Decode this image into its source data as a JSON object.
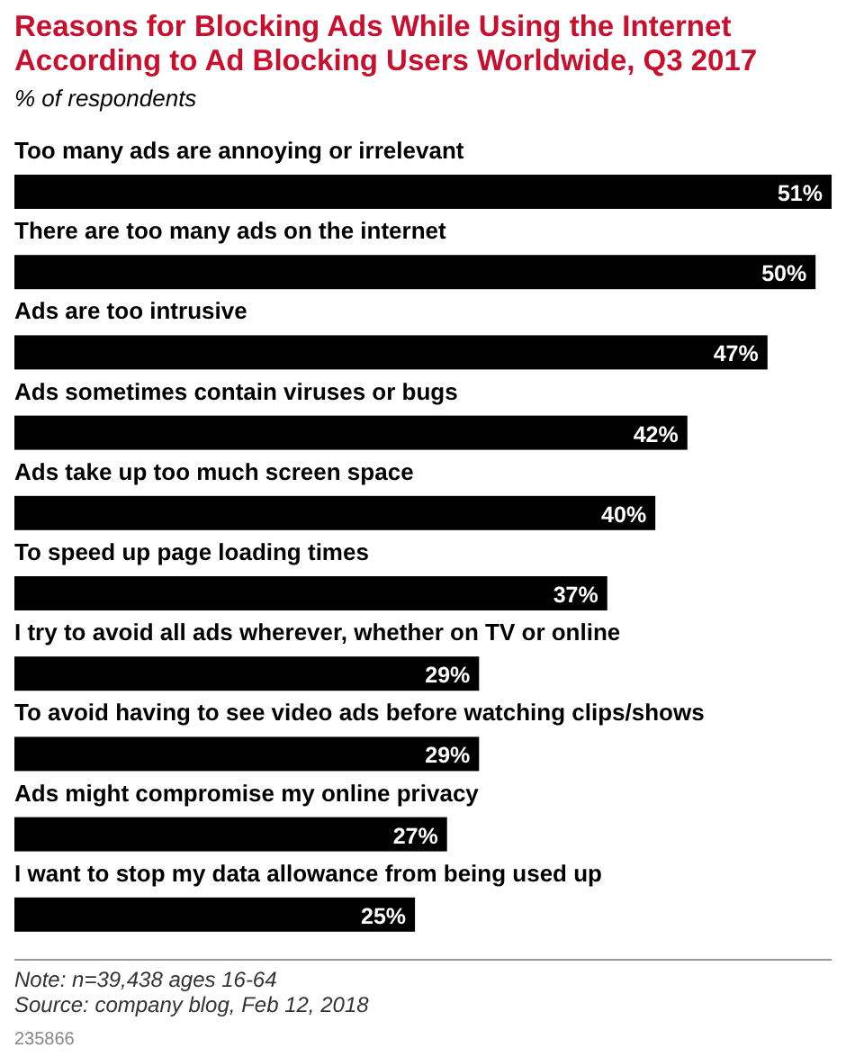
{
  "chart_data": {
    "type": "bar",
    "orientation": "horizontal",
    "title": "Reasons for Blocking Ads While Using the Internet According to Ad Blocking Users Worldwide, Q3 2017",
    "subtitle": "% of respondents",
    "categories": [
      "Too many ads are annoying or irrelevant",
      "There are too many ads on the internet",
      "Ads are too intrusive",
      "Ads sometimes contain viruses or bugs",
      "Ads take up too much screen space",
      "To speed up page loading times",
      "I try to avoid all ads wherever, whether on TV or online",
      "To avoid having to see video ads before watching clips/shows",
      "Ads might compromise my online privacy",
      "I want to stop my data allowance from being used up"
    ],
    "values": [
      51,
      50,
      47,
      42,
      40,
      37,
      29,
      29,
      27,
      25
    ],
    "value_labels": [
      "51%",
      "50%",
      "47%",
      "42%",
      "40%",
      "37%",
      "29%",
      "29%",
      "27%",
      "25%"
    ],
    "color": "#000000",
    "annotations": [
      "Note: n=39,438 ages 16-64",
      "Source: company blog, Feb 12, 2018",
      "235866"
    ]
  }
}
